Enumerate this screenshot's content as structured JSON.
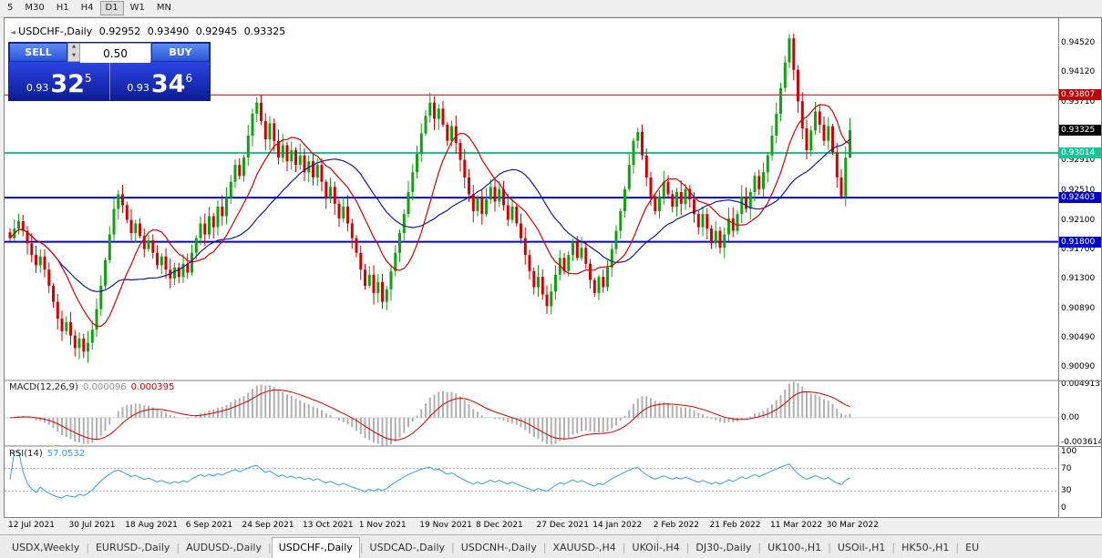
{
  "icons": {
    "collapse": "◄",
    "spin_up": "▲",
    "spin_down": "▼",
    "tab_separator": "|"
  },
  "toolbar": {
    "timeframes": [
      "5",
      "M30",
      "H1",
      "H4",
      "D1",
      "W1",
      "MN"
    ],
    "active_timeframe": "D1"
  },
  "chart_header": {
    "symbol_title": "USDCHF-,Daily",
    "open": "0.92952",
    "high": "0.93490",
    "low": "0.92945",
    "close": "0.93325"
  },
  "trade_panel": {
    "sell_label": "SELL",
    "buy_label": "BUY",
    "volume": "0.50",
    "sell_price_prefix": "0.93",
    "sell_price_big": "32",
    "sell_price_sup": "5",
    "buy_price_prefix": "0.93",
    "buy_price_big": "34",
    "buy_price_sup": "6"
  },
  "price_axis": {
    "ticks": [
      "0.94520",
      "0.94120",
      "0.93710",
      "0.92910",
      "0.92510",
      "0.92100",
      "0.91700",
      "0.91300",
      "0.90890",
      "0.90490",
      "0.90090"
    ],
    "badges": [
      {
        "text": "0.93807",
        "value": 0.93807,
        "bg": "#c00000"
      },
      {
        "text": "0.93325",
        "value": 0.93325,
        "bg": "#000000"
      },
      {
        "text": "0.93014",
        "value": 0.93014,
        "bg": "#17c596"
      },
      {
        "text": "0.92403",
        "value": 0.92403,
        "bg": "#0000cd"
      },
      {
        "text": "0.91800",
        "value": 0.918,
        "bg": "#0000cd"
      }
    ]
  },
  "hlines": [
    {
      "value": 0.93807,
      "color": "#c00000",
      "width": 1
    },
    {
      "value": 0.93014,
      "color": "#17c596",
      "width": 2
    },
    {
      "value": 0.92403,
      "color": "#0000cd",
      "width": 2
    },
    {
      "value": 0.918,
      "color": "#0000cd",
      "width": 2
    }
  ],
  "macd_pane": {
    "label": "MACD(12,26,9)",
    "value_main": "0.000096",
    "value_signal": "0.000395",
    "axis": [
      "0.004913",
      "0.00",
      "-0.003614"
    ],
    "axis_values": [
      0.004913,
      0,
      -0.003614
    ]
  },
  "rsi_pane": {
    "label": "RSI(14)",
    "value": "57.0532",
    "axis": [
      "100",
      "70",
      "30",
      "0"
    ],
    "levels": [
      70,
      30
    ]
  },
  "x_axis": {
    "labels": [
      "12 Jul 2021",
      "30 Jul 2021",
      "18 Aug 2021",
      "6 Sep 2021",
      "24 Sep 2021",
      "13 Oct 2021",
      "1 Nov 2021",
      "19 Nov 2021",
      "8 Dec 2021",
      "27 Dec 2021",
      "14 Jan 2022",
      "2 Feb 2022",
      "21 Feb 2022",
      "11 Mar 2022",
      "30 Mar 2022"
    ]
  },
  "tabs": {
    "items": [
      "USDX,Weekly",
      "EURUSD-,Daily",
      "AUDUSD-,Daily",
      "USDCHF-,Daily",
      "USDCAD-,Daily",
      "USDCNH-,Daily",
      "XAUUSD-,H4",
      "UKOil-,H4",
      "DJ30-,Daily",
      "UK100-,H1",
      "USOil-,H1",
      "HK50-,H1",
      "EU"
    ],
    "active": "USDCHF-,Daily"
  },
  "chart_data": {
    "type": "candlestick",
    "symbol": "USDCHF",
    "timeframe": "Daily",
    "price_range": [
      0.8998,
      0.9478
    ],
    "last_candle": {
      "open": 0.92952,
      "high": 0.9349,
      "low": 0.92945,
      "close": 0.93325
    },
    "up_color": "#0fa30f",
    "down_color": "#d60000",
    "ma_fast": {
      "period": 12,
      "color": "#d60000"
    },
    "ma_slow": {
      "period": 26,
      "color": "#151b8d"
    },
    "closes": [
      0.9185,
      0.9198,
      0.9208,
      0.9195,
      0.9178,
      0.9162,
      0.9148,
      0.916,
      0.9142,
      0.912,
      0.9098,
      0.9075,
      0.9058,
      0.907,
      0.9052,
      0.9035,
      0.9048,
      0.903,
      0.9042,
      0.906,
      0.9088,
      0.912,
      0.9155,
      0.919,
      0.9225,
      0.9245,
      0.923,
      0.921,
      0.9192,
      0.9205,
      0.9188,
      0.917,
      0.9182,
      0.9165,
      0.9148,
      0.916,
      0.9142,
      0.913,
      0.9145,
      0.9132,
      0.915,
      0.9138,
      0.9165,
      0.9185,
      0.9205,
      0.919,
      0.9215,
      0.92,
      0.9228,
      0.9215,
      0.924,
      0.9262,
      0.9285,
      0.927,
      0.9295,
      0.9325,
      0.9355,
      0.937,
      0.9345,
      0.932,
      0.9342,
      0.9318,
      0.9295,
      0.9312,
      0.929,
      0.9305,
      0.9285,
      0.9298,
      0.9275,
      0.929,
      0.9268,
      0.9285,
      0.9262,
      0.924,
      0.9255,
      0.9232,
      0.9212,
      0.9228,
      0.9205,
      0.9185,
      0.9165,
      0.9142,
      0.912,
      0.9135,
      0.911,
      0.9125,
      0.9098,
      0.9115,
      0.914,
      0.9165,
      0.9192,
      0.9218,
      0.9248,
      0.9275,
      0.93,
      0.9328,
      0.9352,
      0.937,
      0.9348,
      0.9362,
      0.934,
      0.9318,
      0.9338,
      0.9315,
      0.9292,
      0.9268,
      0.9245,
      0.9222,
      0.924,
      0.9218,
      0.9238,
      0.9255,
      0.9235,
      0.9252,
      0.923,
      0.921,
      0.9228,
      0.9205,
      0.9185,
      0.9162,
      0.914,
      0.9118,
      0.9132,
      0.9108,
      0.9092,
      0.9112,
      0.9135,
      0.9158,
      0.914,
      0.9162,
      0.918,
      0.9158,
      0.9172,
      0.915,
      0.9128,
      0.911,
      0.9132,
      0.9118,
      0.9145,
      0.917,
      0.9195,
      0.9222,
      0.9252,
      0.9285,
      0.9318,
      0.933,
      0.9298,
      0.9268,
      0.9242,
      0.9222,
      0.9242,
      0.9262,
      0.9245,
      0.9228,
      0.9248,
      0.9232,
      0.9252,
      0.9238,
      0.9218,
      0.92,
      0.9218,
      0.9198,
      0.9178,
      0.9195,
      0.9172,
      0.919,
      0.9212,
      0.9195,
      0.9218,
      0.9242,
      0.9225,
      0.9248,
      0.927,
      0.9252,
      0.9275,
      0.9298,
      0.9325,
      0.9355,
      0.939,
      0.9425,
      0.9458,
      0.9415,
      0.9372,
      0.9335,
      0.9305,
      0.9332,
      0.9358,
      0.934,
      0.9318,
      0.9338,
      0.9302,
      0.9268,
      0.9242,
      0.9295,
      0.93325
    ]
  }
}
